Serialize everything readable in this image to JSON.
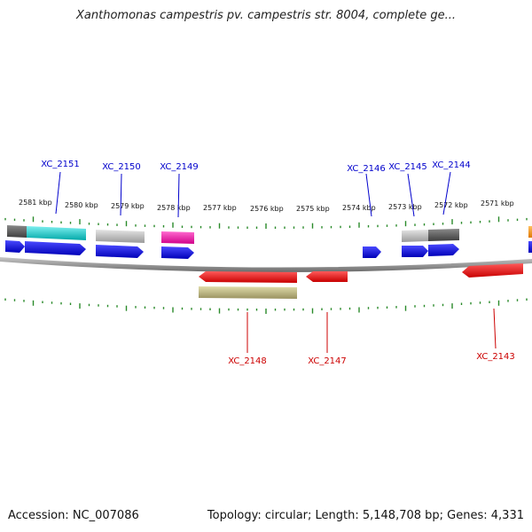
{
  "title": "Xanthomonas campestris pv. campestris str. 8004, complete ge...",
  "footer": {
    "accession": "Accession: NC_007086",
    "summary": "Topology: circular; Length: 5,148,708 bp; Genes: 4,331"
  },
  "colors": {
    "forward_label": "#0000cc",
    "reverse_label": "#cc0000",
    "tick": "#2a8a2a",
    "backbone": "#8a8a8a"
  },
  "scale_labels": [
    "2581 kbp",
    "2580 kbp",
    "2579 kbp",
    "2578 kbp",
    "2577 kbp",
    "2576 kbp",
    "2575 kbp",
    "2574 kbp",
    "2573 kbp",
    "2572 kbp",
    "2571 kbp"
  ],
  "forward_genes": [
    {
      "label": "XC_2151"
    },
    {
      "label": "XC_2150"
    },
    {
      "label": "XC_2149"
    },
    {
      "label": "XC_2146"
    },
    {
      "label": "XC_2145"
    },
    {
      "label": "XC_2144"
    }
  ],
  "reverse_genes": [
    {
      "label": "XC_2148"
    },
    {
      "label": "XC_2147"
    },
    {
      "label": "XC_2143"
    }
  ]
}
